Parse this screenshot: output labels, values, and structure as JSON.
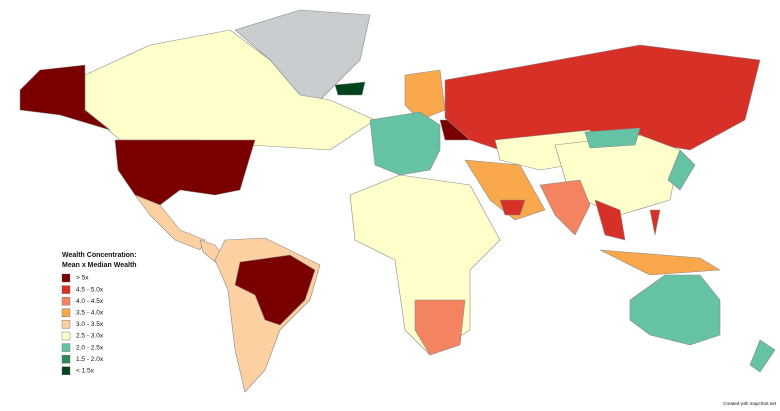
{
  "legend": {
    "title_lines": [
      "Wealth Concentration:",
      "Mean x Median Wealth"
    ],
    "items": [
      {
        "label": "> 5x",
        "color": "#7a0000"
      },
      {
        "label": "4.5 - 5.0x",
        "color": "#d73027"
      },
      {
        "label": "4.0 - 4.5x",
        "color": "#f4845f"
      },
      {
        "label": "3.5 - 4.0x",
        "color": "#f9a94b"
      },
      {
        "label": "3.0 - 3.5x",
        "color": "#fdd0a2"
      },
      {
        "label": "2.5 - 3.0x",
        "color": "#ffffcc"
      },
      {
        "label": "2.0 - 2.5x",
        "color": "#66c2a5"
      },
      {
        "label": "1.5 - 2.0x",
        "color": "#2e8b57"
      },
      {
        "label": "< 1.5x",
        "color": "#00441b"
      }
    ]
  },
  "credit": "Created with mapchart.net"
}
